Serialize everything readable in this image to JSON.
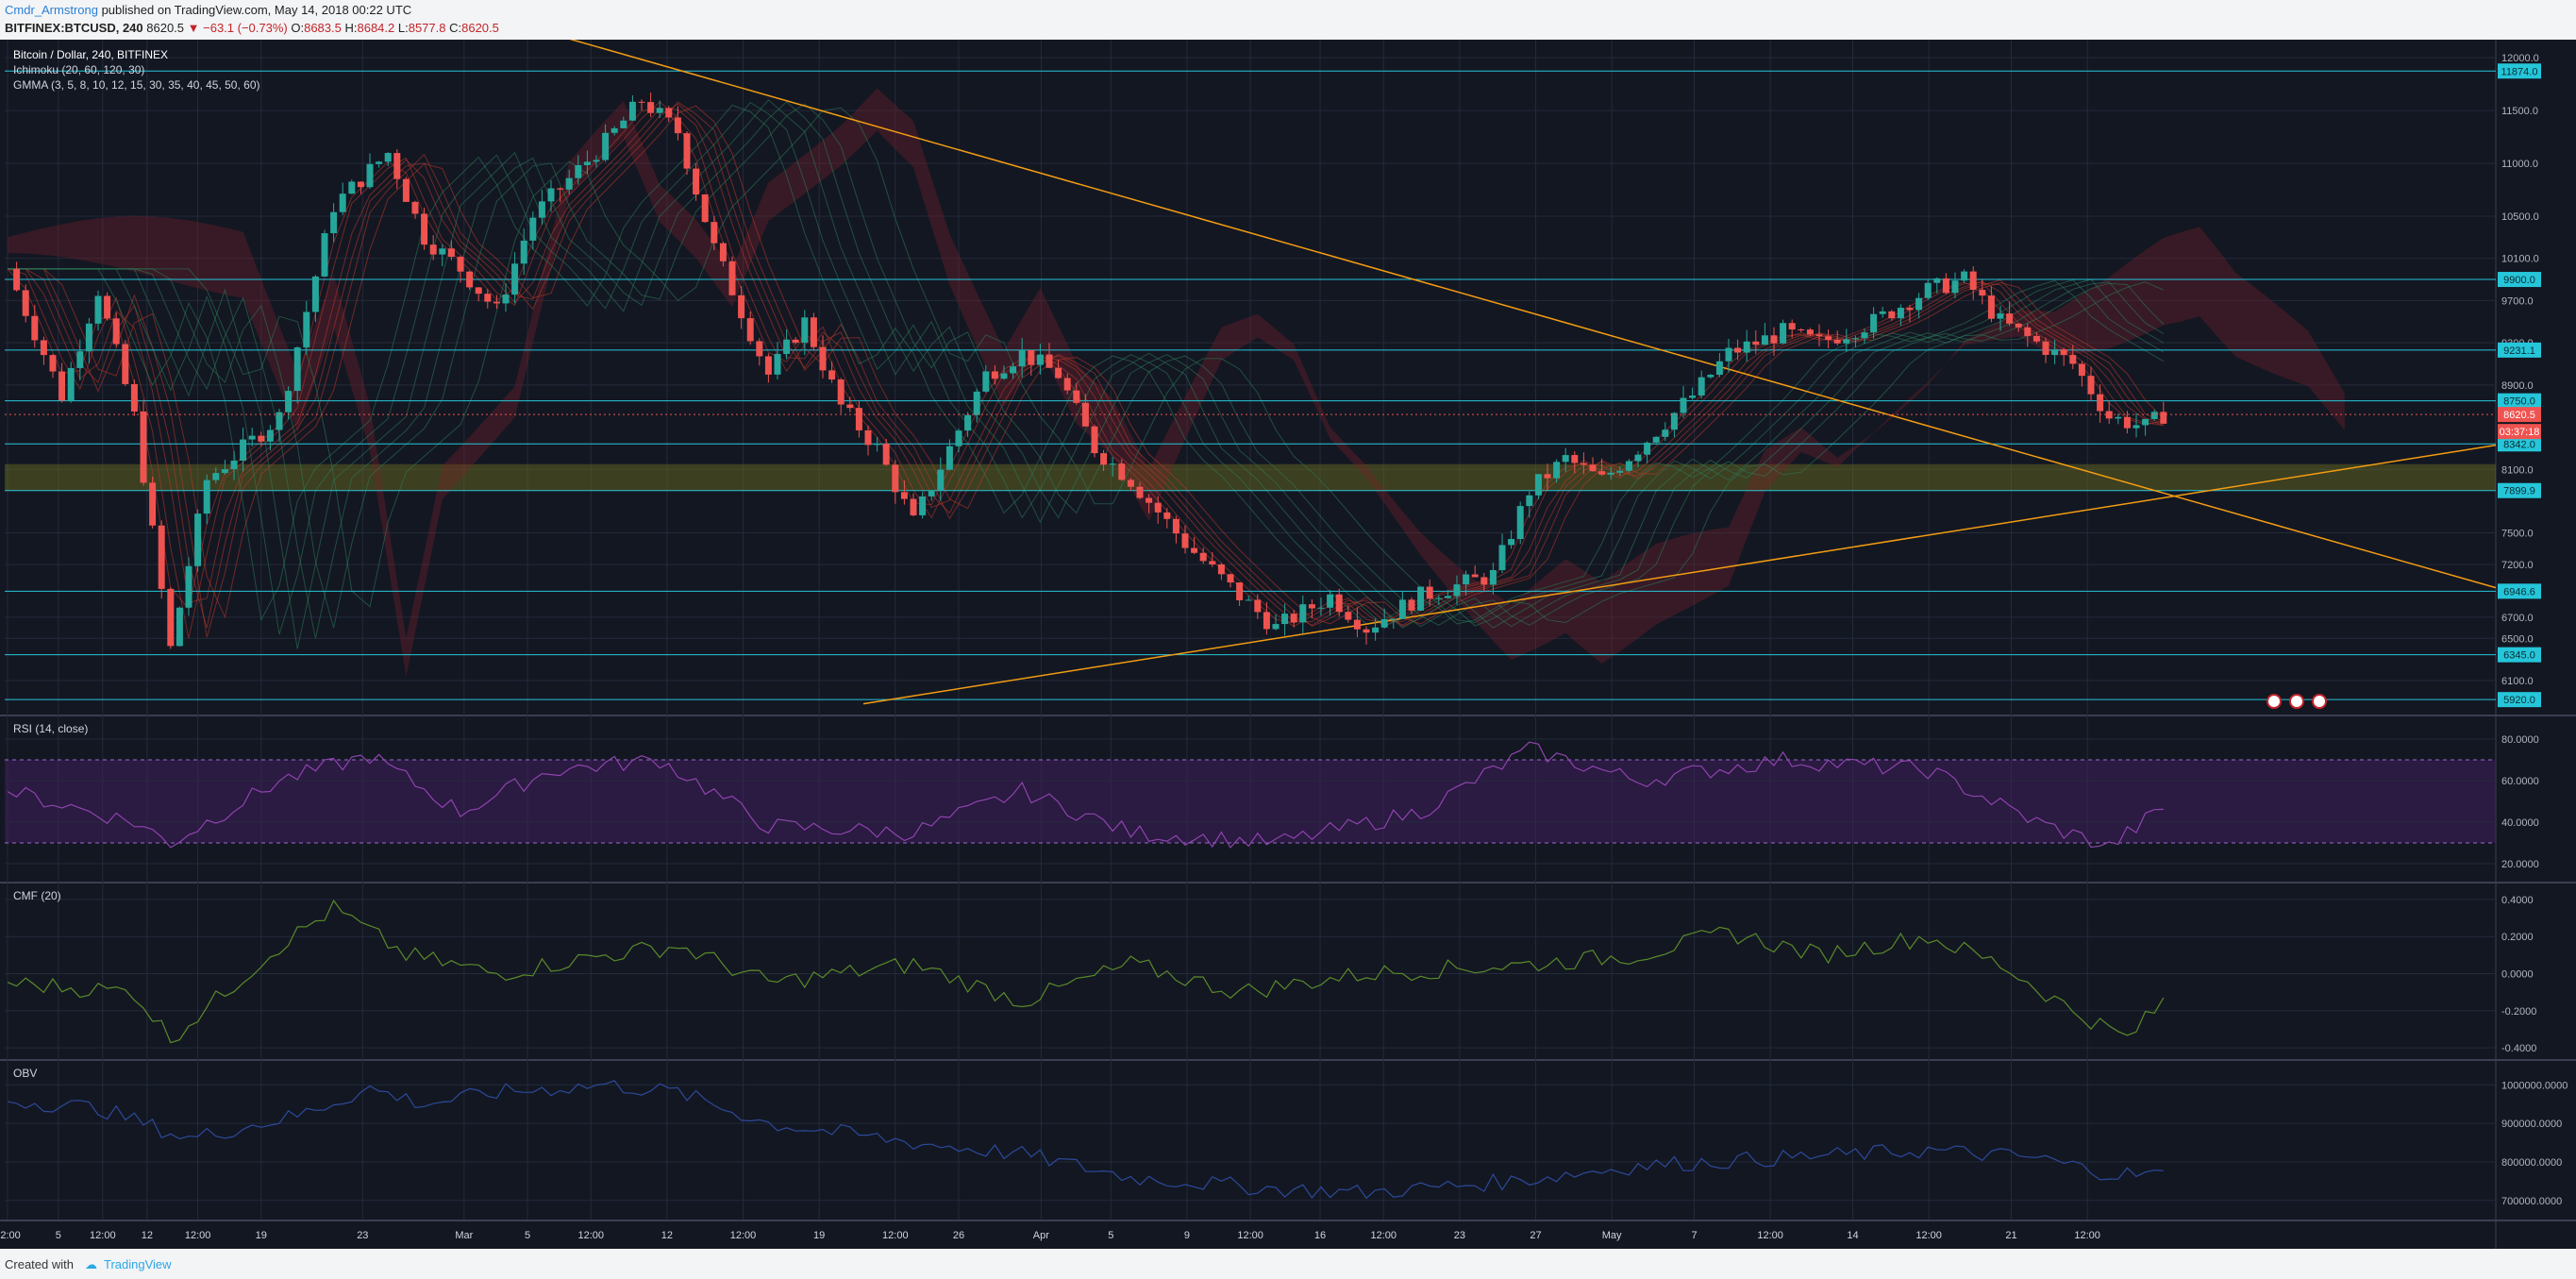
{
  "header": {
    "author": "Cmdr_Armstrong",
    "published_text": " published on TradingView.com, May 14, 2018 00:22 UTC",
    "symbol": "BITFINEX:BTCUSD, 240",
    "last": " 8620.5 ",
    "change": "▼ −63.1 (−0.73%)",
    "open_label": " O:",
    "open": "8683.5",
    "high_label": " H:",
    "high": "8684.2",
    "low_label": " L:",
    "low": "8577.8",
    "close_label": " C:",
    "close": "8620.5"
  },
  "footer": {
    "created": "Created with",
    "brand": "TradingView"
  },
  "colors": {
    "background": "#131722",
    "grid": "#232a3a",
    "teal": "#26c6da",
    "up": "#26a69a",
    "down": "#ef5350",
    "trendline": "#f39c12",
    "rsi": "#8e44ad",
    "cmf": "#4a7a2a",
    "obv": "#2c4a8a"
  },
  "chart_data": [
    {
      "type": "candlestick",
      "title": "Bitcoin / Dollar, 240, BITFINEX",
      "indicator_labels": [
        "Ichimoku (20, 60, 120, 30)",
        "GMMA (3, 5, 8, 10, 12, 15, 30, 35, 40, 45, 50, 60)"
      ],
      "ylim": [
        5850,
        12100
      ],
      "y_ticks": [
        12000,
        11500,
        11000,
        10500,
        10100,
        9700,
        9300,
        8900,
        8100,
        7500,
        7200,
        6700,
        6500,
        6100
      ],
      "horizontal_levels": [
        11874.0,
        9900.0,
        9231.1,
        8750.0,
        8342.0,
        7899.9,
        6946.6,
        6345.0,
        5920.0
      ],
      "current_price": 8620.5,
      "countdown": "03:37:18",
      "x_ticks": [
        "12:00",
        "5",
        "12:00",
        "12",
        "12:00",
        "19",
        "23",
        "Mar",
        "5",
        "12:00",
        "12",
        "12:00",
        "19",
        "12:00",
        "26",
        "Apr",
        "5",
        "9",
        "12:00",
        "16",
        "12:00",
        "23",
        "27",
        "May",
        "7",
        "12:00",
        "14",
        "12:00",
        "21",
        "12:00"
      ],
      "close_path": [
        [
          0,
          10000
        ],
        [
          6,
          8800
        ],
        [
          10,
          9800
        ],
        [
          14,
          8600
        ],
        [
          18,
          6400
        ],
        [
          22,
          8000
        ],
        [
          30,
          8600
        ],
        [
          36,
          10600
        ],
        [
          42,
          11100
        ],
        [
          46,
          10300
        ],
        [
          50,
          10000
        ],
        [
          54,
          9600
        ],
        [
          58,
          10500
        ],
        [
          66,
          11200
        ],
        [
          70,
          11600
        ],
        [
          74,
          11300
        ],
        [
          78,
          10200
        ],
        [
          84,
          9000
        ],
        [
          88,
          9500
        ],
        [
          92,
          8700
        ],
        [
          96,
          8300
        ],
        [
          100,
          7600
        ],
        [
          104,
          8300
        ],
        [
          108,
          9000
        ],
        [
          112,
          9200
        ],
        [
          116,
          9000
        ],
        [
          120,
          8300
        ],
        [
          124,
          8000
        ],
        [
          130,
          7400
        ],
        [
          136,
          6900
        ],
        [
          140,
          6600
        ],
        [
          146,
          6900
        ],
        [
          150,
          6600
        ],
        [
          156,
          6900
        ],
        [
          164,
          7100
        ],
        [
          168,
          7900
        ],
        [
          172,
          8200
        ],
        [
          176,
          8000
        ],
        [
          180,
          8300
        ],
        [
          186,
          8800
        ],
        [
          190,
          9200
        ],
        [
          196,
          9400
        ],
        [
          200,
          9300
        ],
        [
          206,
          9500
        ],
        [
          212,
          9800
        ],
        [
          216,
          9900
        ],
        [
          220,
          9500
        ],
        [
          224,
          9300
        ],
        [
          228,
          9100
        ],
        [
          232,
          8600
        ],
        [
          236,
          8500
        ],
        [
          238,
          8620.5
        ]
      ],
      "total_bars": 238
    },
    {
      "type": "line",
      "title": "RSI (14, close)",
      "ylim": [
        15,
        85
      ],
      "y_ticks": [
        "80.0000",
        "60.0000",
        "40.0000",
        "20.0000"
      ],
      "band": [
        30,
        70
      ],
      "path": [
        [
          0,
          55
        ],
        [
          14,
          40
        ],
        [
          18,
          30
        ],
        [
          30,
          60
        ],
        [
          40,
          72
        ],
        [
          50,
          45
        ],
        [
          60,
          65
        ],
        [
          72,
          70
        ],
        [
          84,
          38
        ],
        [
          100,
          35
        ],
        [
          112,
          55
        ],
        [
          124,
          35
        ],
        [
          140,
          30
        ],
        [
          156,
          45
        ],
        [
          168,
          75
        ],
        [
          180,
          60
        ],
        [
          196,
          70
        ],
        [
          212,
          65
        ],
        [
          224,
          40
        ],
        [
          232,
          28
        ],
        [
          238,
          47
        ]
      ]
    },
    {
      "type": "line",
      "title": "CMF (20)",
      "ylim": [
        -0.42,
        0.42
      ],
      "y_ticks": [
        "0.4000",
        "0.2000",
        "0.0000",
        "-0.2000",
        "-0.4000"
      ],
      "path": [
        [
          0,
          -0.05
        ],
        [
          14,
          -0.1
        ],
        [
          18,
          -0.35
        ],
        [
          30,
          0.15
        ],
        [
          36,
          0.35
        ],
        [
          44,
          0.1
        ],
        [
          54,
          0.0
        ],
        [
          66,
          0.1
        ],
        [
          74,
          0.15
        ],
        [
          84,
          -0.05
        ],
        [
          100,
          0.05
        ],
        [
          112,
          -0.15
        ],
        [
          124,
          0.05
        ],
        [
          136,
          -0.1
        ],
        [
          150,
          0.0
        ],
        [
          168,
          0.05
        ],
        [
          180,
          0.1
        ],
        [
          190,
          0.22
        ],
        [
          200,
          0.1
        ],
        [
          212,
          0.2
        ],
        [
          220,
          0.05
        ],
        [
          228,
          -0.2
        ],
        [
          234,
          -0.35
        ],
        [
          238,
          -0.15
        ]
      ]
    },
    {
      "type": "line",
      "title": "OBV",
      "ylim": [
        670000,
        1030000
      ],
      "y_ticks": [
        "1000000.0000",
        "900000.0000",
        "800000.0000",
        "700000.0000"
      ],
      "path": [
        [
          0,
          960000
        ],
        [
          10,
          940000
        ],
        [
          20,
          860000
        ],
        [
          32,
          920000
        ],
        [
          40,
          990000
        ],
        [
          46,
          950000
        ],
        [
          54,
          980000
        ],
        [
          66,
          1000000
        ],
        [
          74,
          980000
        ],
        [
          84,
          900000
        ],
        [
          100,
          850000
        ],
        [
          112,
          820000
        ],
        [
          124,
          760000
        ],
        [
          140,
          730000
        ],
        [
          150,
          720000
        ],
        [
          166,
          750000
        ],
        [
          180,
          790000
        ],
        [
          196,
          810000
        ],
        [
          212,
          830000
        ],
        [
          224,
          810000
        ],
        [
          232,
          770000
        ],
        [
          238,
          765000
        ]
      ]
    }
  ]
}
